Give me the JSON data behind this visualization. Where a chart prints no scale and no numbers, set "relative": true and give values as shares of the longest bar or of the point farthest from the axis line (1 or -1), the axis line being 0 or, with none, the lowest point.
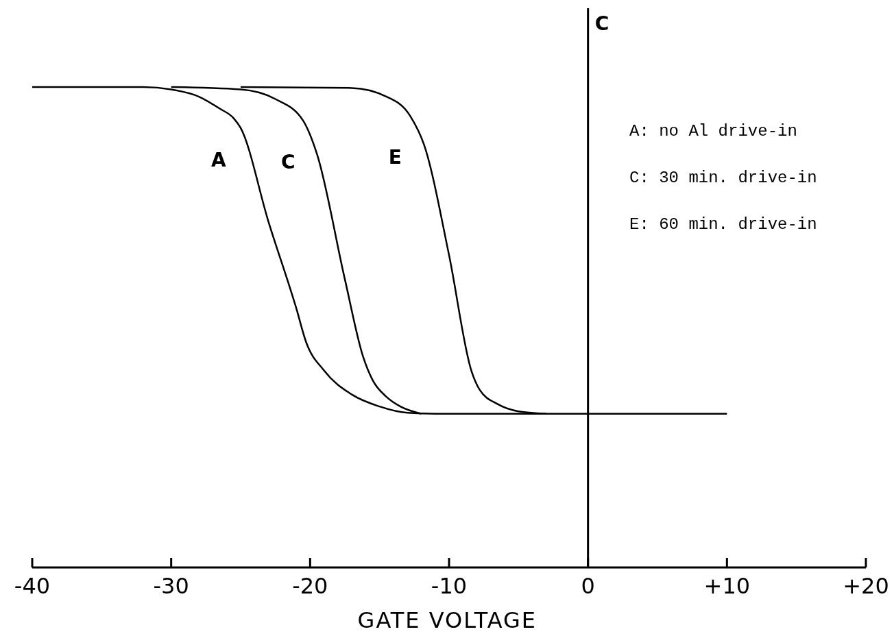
{
  "chart_data": {
    "type": "line",
    "relative": true,
    "xlabel": "GATE VOLTAGE",
    "ylabel": "C",
    "xlim": [
      -40,
      20
    ],
    "xticks": [
      -40,
      -30,
      -20,
      -10,
      0,
      {
        "value": 10,
        "label": "+10"
      },
      {
        "value": 20,
        "label": "+20"
      }
    ],
    "line_style": "solid",
    "annotations": [
      "A:  no Al drive-in",
      "C:  30 min. drive-in",
      "E:  60 min. drive-in"
    ],
    "series": [
      {
        "name": "A",
        "color": "#000000",
        "x": [
          -40,
          -32,
          -30,
          -28,
          -26.5,
          -25.5,
          -25,
          -23,
          -21,
          -20.3,
          -19,
          -17,
          -15,
          -13,
          -11,
          10
        ],
        "values": [
          1,
          1,
          0.995,
          0.98,
          0.955,
          0.935,
          0.915,
          0.72,
          0.54,
          0.47,
          0.41,
          0.36,
          0.335,
          0.322,
          0.32,
          0.32
        ]
      },
      {
        "name": "C",
        "color": "#000000",
        "x": [
          -30,
          -25,
          -22.5,
          -20.5,
          -19.5,
          -17.5,
          -16.2,
          -15.5,
          -14.5,
          -13.5,
          -12
        ],
        "values": [
          1,
          0.995,
          0.975,
          0.93,
          0.86,
          0.6,
          0.44,
          0.39,
          0.355,
          0.335,
          0.32
        ]
      },
      {
        "name": "E",
        "color": "#000000",
        "x": [
          -25,
          -17,
          -14.5,
          -12.8,
          -11.8,
          -10,
          -8.4,
          -7.8,
          -6.5,
          -5,
          -3
        ],
        "values": [
          1,
          0.998,
          0.98,
          0.94,
          0.88,
          0.65,
          0.41,
          0.37,
          0.34,
          0.325,
          0.32
        ]
      }
    ]
  }
}
